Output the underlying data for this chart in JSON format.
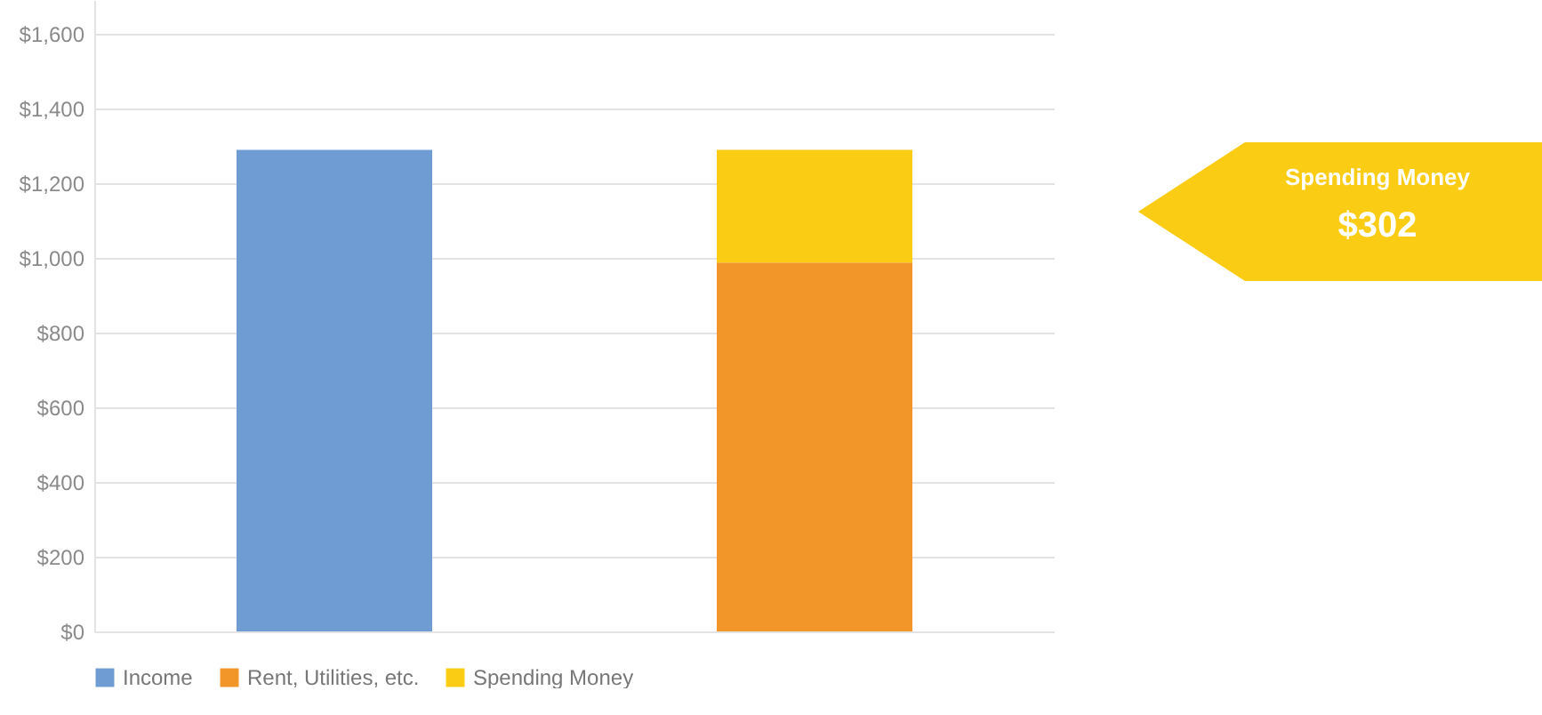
{
  "chart_data": {
    "type": "bar",
    "stacked": true,
    "categories": [
      null,
      null
    ],
    "series": [
      {
        "name": "Income",
        "color": "#6f9dd3",
        "values": [
          1289,
          null
        ]
      },
      {
        "name": "Rent, Utilities, etc.",
        "color": "#f39629",
        "values": [
          null,
          987
        ]
      },
      {
        "name": "Spending Money",
        "color": "#facc14",
        "values": [
          null,
          302
        ]
      }
    ],
    "ylim": [
      0,
      1690
    ],
    "yticks": [
      {
        "value": 0,
        "label": "$0"
      },
      {
        "value": 200,
        "label": "$200"
      },
      {
        "value": 400,
        "label": "$400"
      },
      {
        "value": 600,
        "label": "$600"
      },
      {
        "value": 800,
        "label": "$800"
      },
      {
        "value": 1000,
        "label": "$1,000"
      },
      {
        "value": 1200,
        "label": "$1,200"
      },
      {
        "value": 1400,
        "label": "$1,400"
      },
      {
        "value": 1600,
        "label": "$1,600"
      }
    ],
    "grid": "y",
    "legend": "bottom",
    "annotations": [
      "Spending Money",
      "$302"
    ]
  }
}
